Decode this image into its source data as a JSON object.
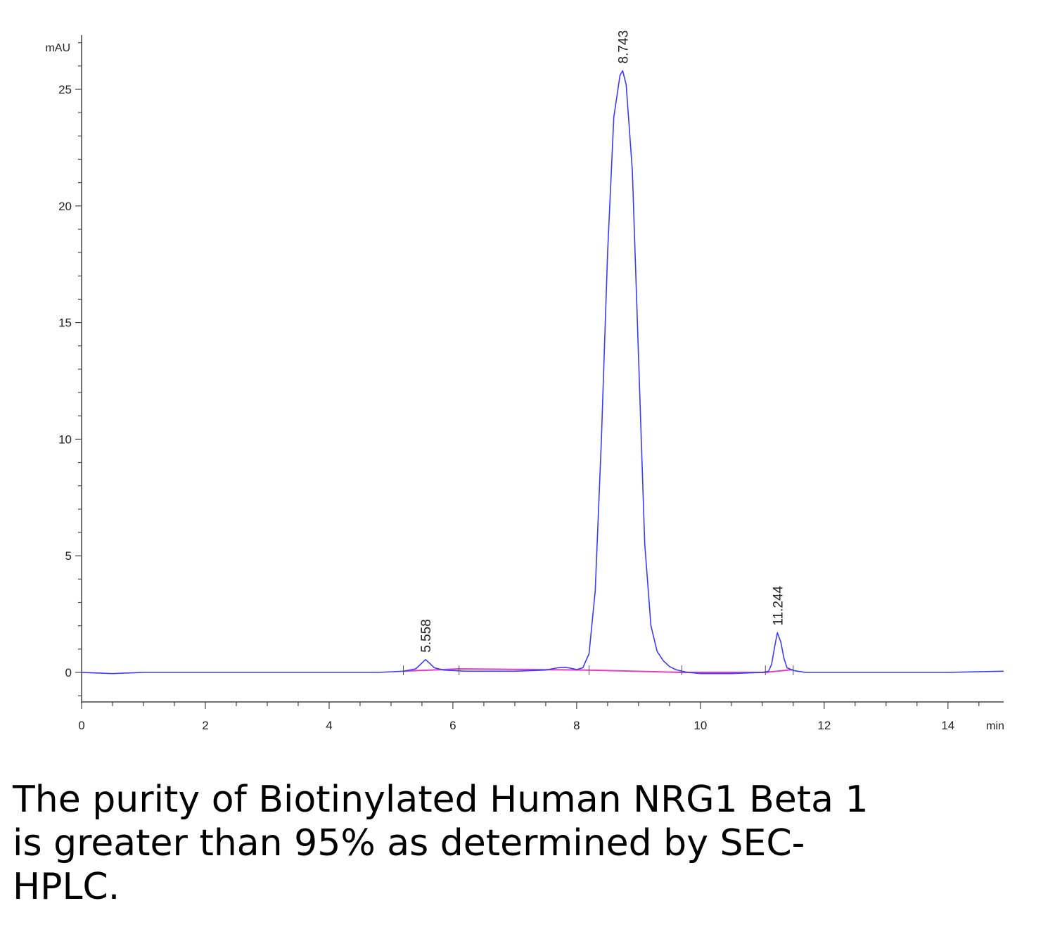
{
  "chart_data": {
    "type": "line",
    "title": "",
    "xlabel": "",
    "ylabel": "",
    "x_unit": "min",
    "y_unit": "mAU",
    "xlim": [
      0,
      14.9
    ],
    "ylim": [
      -1.3,
      27
    ],
    "x_ticks": [
      0,
      2,
      4,
      6,
      8,
      10,
      12,
      14
    ],
    "y_ticks": [
      0,
      5,
      10,
      15,
      20,
      25
    ],
    "x_tick_labels": [
      "0",
      "2",
      "4",
      "6",
      "8",
      "10",
      "12",
      "14"
    ],
    "y_tick_labels": [
      "0",
      "5",
      "10",
      "15",
      "20",
      "25"
    ],
    "grid": false,
    "series": [
      {
        "color": "#3b3bff",
        "x": [
          0.0,
          0.5,
          1.0,
          2.0,
          3.0,
          4.0,
          4.8,
          5.2,
          5.4,
          5.5,
          5.558,
          5.62,
          5.7,
          5.85,
          6.0,
          6.2,
          6.5,
          7.0,
          7.5,
          7.7,
          7.8,
          7.9,
          8.0,
          8.1,
          8.2,
          8.3,
          8.4,
          8.5,
          8.6,
          8.7,
          8.743,
          8.8,
          8.9,
          9.0,
          9.1,
          9.2,
          9.3,
          9.4,
          9.5,
          9.6,
          9.7,
          9.8,
          10.0,
          10.5,
          11.0,
          11.1,
          11.15,
          11.2,
          11.244,
          11.3,
          11.35,
          11.4,
          11.5,
          11.7,
          12.0,
          13.0,
          14.0,
          14.9
        ],
        "y": [
          0.0,
          -0.05,
          0.0,
          0.0,
          0.0,
          0.0,
          0.0,
          0.05,
          0.15,
          0.4,
          0.55,
          0.4,
          0.2,
          0.1,
          0.08,
          0.05,
          0.05,
          0.05,
          0.1,
          0.2,
          0.22,
          0.18,
          0.12,
          0.2,
          0.8,
          3.5,
          10.0,
          18.0,
          23.8,
          25.6,
          25.8,
          25.2,
          21.5,
          13.5,
          5.5,
          2.0,
          0.9,
          0.5,
          0.25,
          0.12,
          0.05,
          0.0,
          -0.05,
          -0.05,
          0.0,
          0.05,
          0.35,
          1.1,
          1.7,
          1.3,
          0.6,
          0.2,
          0.08,
          0.0,
          0.0,
          0.0,
          0.0,
          0.05
        ]
      },
      {
        "color": "#e040c0",
        "x": [
          5.2,
          6.1,
          8.2,
          9.7,
          11.05,
          11.5
        ],
        "y": [
          0.05,
          0.15,
          0.1,
          0.0,
          0.0,
          0.12
        ]
      }
    ],
    "annotations": [
      {
        "x": 5.558,
        "y": 0.55,
        "text": "5.558"
      },
      {
        "x": 8.743,
        "y": 25.8,
        "text": "8.743"
      },
      {
        "x": 11.244,
        "y": 1.7,
        "text": "11.244"
      }
    ]
  },
  "caption": {
    "line1": "The purity of Biotinylated Human NRG1 Beta 1",
    "line2": "is greater than 95% as determined by SEC-",
    "line3": "HPLC."
  }
}
